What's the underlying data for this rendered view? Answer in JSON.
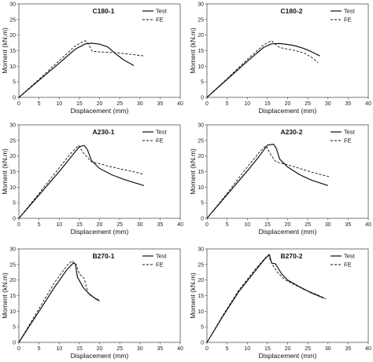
{
  "chart_data": [
    {
      "type": "line",
      "title": "C180-1",
      "xlabel": "Displacement (mm)",
      "ylabel": "Moment (kN.m)",
      "xlim": [
        0,
        40
      ],
      "ylim": [
        0,
        30
      ],
      "xticks": [
        "0",
        "5",
        "10",
        "15",
        "20",
        "25",
        "30",
        "35",
        "40"
      ],
      "yticks": [
        "0",
        "5",
        "10",
        "15",
        "20",
        "25",
        "30"
      ],
      "grid": false,
      "legend": "top-right",
      "series": [
        {
          "name": "Test",
          "dash": "solid",
          "x": [
            0,
            5,
            10,
            14,
            16.5,
            18,
            20,
            22,
            24,
            26,
            28.5
          ],
          "y": [
            0,
            5.5,
            11,
            15.5,
            17.2,
            17.4,
            17.1,
            16.2,
            14,
            12,
            10.2
          ]
        },
        {
          "name": "FE",
          "dash": "dashed",
          "x": [
            0,
            5,
            10,
            14,
            16.5,
            17.3,
            18.2,
            20,
            22,
            25,
            28,
            31
          ],
          "y": [
            0,
            5.8,
            11.8,
            16.6,
            18.2,
            17,
            14.8,
            14.6,
            14.5,
            14.2,
            13.8,
            13.3
          ]
        }
      ]
    },
    {
      "type": "line",
      "title": "C180-2",
      "xlabel": "Displacement (mm)",
      "ylabel": "Moment (kN.m)",
      "xlim": [
        0,
        40
      ],
      "ylim": [
        0,
        30
      ],
      "xticks": [
        "0",
        "5",
        "10",
        "15",
        "20",
        "25",
        "30",
        "35",
        "40"
      ],
      "yticks": [
        "0",
        "5",
        "10",
        "15",
        "20",
        "25",
        "30"
      ],
      "grid": false,
      "legend": "top-right",
      "series": [
        {
          "name": "Test",
          "dash": "solid",
          "x": [
            0,
            5,
            10,
            14,
            16,
            18,
            20,
            22,
            24,
            26,
            28
          ],
          "y": [
            0,
            5.8,
            11.6,
            16,
            17.2,
            17.3,
            17,
            16.5,
            15.7,
            14.6,
            13.3
          ]
        },
        {
          "name": "FE",
          "dash": "dashed",
          "x": [
            0,
            5,
            10,
            14,
            16,
            17,
            18,
            20,
            22,
            24,
            26,
            27.5
          ],
          "y": [
            0,
            6,
            12.2,
            16.8,
            18.2,
            17,
            16,
            15.5,
            15,
            14.3,
            12.8,
            11.2
          ]
        }
      ]
    },
    {
      "type": "line",
      "title": "A230-1",
      "xlabel": "Displacement (mm)",
      "ylabel": "Moment (kN.m)",
      "xlim": [
        0,
        40
      ],
      "ylim": [
        0,
        30
      ],
      "xticks": [
        "0",
        "5",
        "10",
        "15",
        "20",
        "25",
        "30",
        "35",
        "40"
      ],
      "yticks": [
        "0",
        "5",
        "10",
        "15",
        "20",
        "25",
        "30"
      ],
      "grid": false,
      "legend": "top-right",
      "series": [
        {
          "name": "Test",
          "dash": "solid",
          "x": [
            0,
            5,
            10,
            13,
            15,
            16.2,
            17,
            18,
            20,
            23,
            26,
            29,
            31
          ],
          "y": [
            0,
            7.5,
            15,
            19.8,
            23,
            23.4,
            22,
            18.5,
            16,
            14,
            12.5,
            11.3,
            10.5
          ]
        },
        {
          "name": "FE",
          "dash": "dashed",
          "x": [
            0,
            5,
            10,
            13,
            14.8,
            16,
            17,
            18,
            20,
            23,
            26,
            29,
            31
          ],
          "y": [
            0,
            8,
            16.2,
            21,
            23.4,
            21,
            19.5,
            18.2,
            17.5,
            16.5,
            15.6,
            14.8,
            14.1
          ]
        }
      ]
    },
    {
      "type": "line",
      "title": "A230-2",
      "xlabel": "Displacement (mm)",
      "ylabel": "Moment (kN.m)",
      "xlim": [
        0,
        40
      ],
      "ylim": [
        0,
        30
      ],
      "xticks": [
        "0",
        "5",
        "10",
        "15",
        "20",
        "25",
        "30",
        "35",
        "40"
      ],
      "yticks": [
        "0",
        "5",
        "10",
        "15",
        "20",
        "25",
        "30"
      ],
      "grid": false,
      "legend": "top-right",
      "series": [
        {
          "name": "Test",
          "dash": "solid",
          "x": [
            0,
            5,
            10,
            13,
            15,
            16.5,
            17.2,
            18,
            20,
            23,
            26,
            30
          ],
          "y": [
            0,
            7.6,
            15.2,
            20,
            23.5,
            23.8,
            22.5,
            19,
            16.5,
            14,
            12.2,
            10.5
          ]
        },
        {
          "name": "FE",
          "dash": "dashed",
          "x": [
            0,
            5,
            10,
            13,
            14.6,
            15.8,
            17,
            18,
            20,
            23,
            26,
            30.5
          ],
          "y": [
            0,
            8,
            16.5,
            21.2,
            23.3,
            20.5,
            18.3,
            17.8,
            17.2,
            16,
            14.8,
            13.3
          ]
        }
      ]
    },
    {
      "type": "line",
      "title": "B270-1",
      "xlabel": "Displacement (mm)",
      "ylabel": "Moment (kN.m)",
      "xlim": [
        0,
        40
      ],
      "ylim": [
        0,
        30
      ],
      "xticks": [
        "0",
        "5",
        "10",
        "15",
        "20",
        "25",
        "30",
        "35",
        "40"
      ],
      "yticks": [
        "0",
        "5",
        "10",
        "15",
        "20",
        "25",
        "30"
      ],
      "grid": false,
      "legend": "top-right",
      "series": [
        {
          "name": "Test",
          "dash": "solid",
          "x": [
            0,
            3,
            6,
            9,
            12,
            13.5,
            14,
            14.5,
            16,
            17.5,
            19,
            20
          ],
          "y": [
            0,
            6,
            12,
            18,
            23.5,
            25.5,
            25.2,
            21,
            17.5,
            15.5,
            14,
            13.3
          ]
        },
        {
          "name": "FE",
          "dash": "dashed",
          "x": [
            0,
            3,
            6,
            9,
            12,
            13.2,
            14.2,
            15,
            16.2,
            17.2,
            19,
            20
          ],
          "y": [
            0,
            6.5,
            13,
            19.5,
            24.8,
            26.2,
            25,
            22,
            20.5,
            15.5,
            14.2,
            13.5
          ]
        }
      ]
    },
    {
      "type": "line",
      "title": "B270-2",
      "xlabel": "Displacement (mm)",
      "ylabel": "Moment (kN.m)",
      "xlim": [
        0,
        40
      ],
      "ylim": [
        0,
        30
      ],
      "xticks": [
        "0",
        "5",
        "10",
        "15",
        "20",
        "25",
        "30",
        "35",
        "40"
      ],
      "yticks": [
        "0",
        "5",
        "10",
        "15",
        "20",
        "25",
        "30"
      ],
      "grid": false,
      "legend": "top-right",
      "series": [
        {
          "name": "Test",
          "dash": "solid",
          "x": [
            0,
            4,
            8,
            12,
            14.5,
            15.5,
            16,
            17,
            18.5,
            20,
            23,
            26,
            29
          ],
          "y": [
            0,
            8.5,
            16.5,
            23,
            27,
            28.2,
            25.5,
            25.2,
            22,
            20,
            17.8,
            15.8,
            14.2
          ]
        },
        {
          "name": "FE",
          "dash": "dashed",
          "x": [
            0,
            4,
            8,
            12,
            14.5,
            15.2,
            16.2,
            17.5,
            19.2,
            21,
            24,
            27,
            29.5
          ],
          "y": [
            0,
            8.8,
            17,
            23.5,
            27.2,
            28,
            25,
            22.5,
            20.2,
            19,
            17,
            15.5,
            14
          ]
        }
      ]
    }
  ]
}
